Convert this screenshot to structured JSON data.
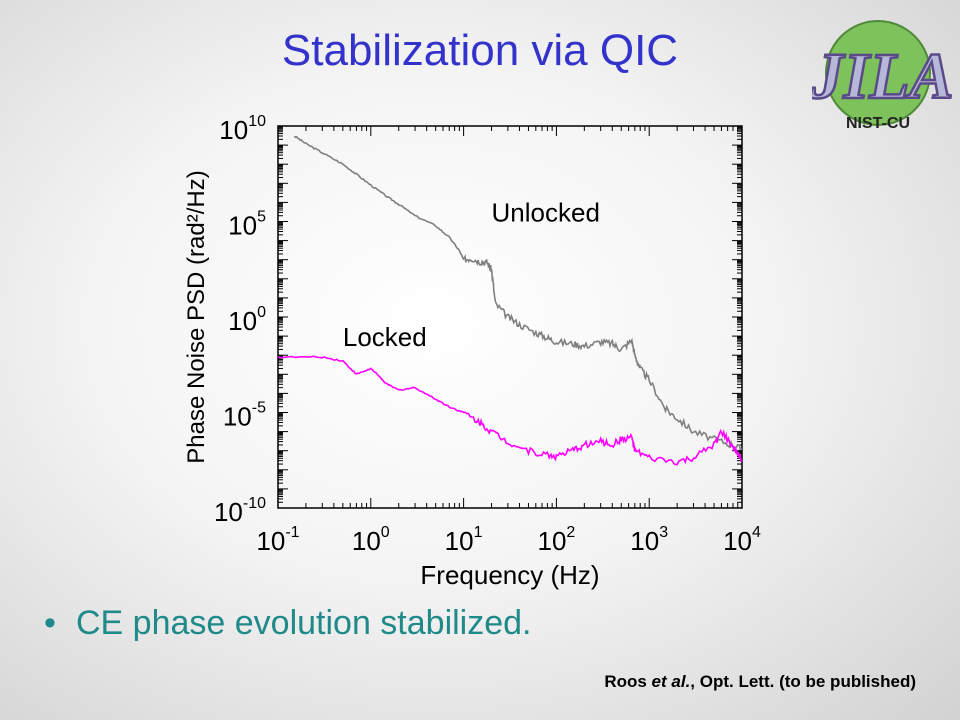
{
  "slide": {
    "title": "Stabilization via QIC",
    "logo": {
      "text_top": "JILA",
      "text_bottom": "NIST-CU",
      "colors": [
        "#8fd16a",
        "#b7b7d8",
        "#6a5a9e"
      ]
    },
    "bullet": "CE phase evolution stabilized.",
    "citation": {
      "authors": "Roos",
      "etal": "et al.",
      "rest": ", Opt. Lett. (to be published)"
    }
  },
  "chart_data": {
    "type": "line",
    "xscale": "log",
    "yscale": "log",
    "xlim": [
      0.1,
      10000
    ],
    "ylim": [
      1e-10,
      10000000000.0
    ],
    "xlabel": "Frequency (Hz)",
    "ylabel": "Phase Noise PSD (rad²/Hz)",
    "xticks": [
      {
        "value": 0.1,
        "base": "10",
        "exp": "-1"
      },
      {
        "value": 1,
        "base": "10",
        "exp": "0"
      },
      {
        "value": 10,
        "base": "10",
        "exp": "1"
      },
      {
        "value": 100,
        "base": "10",
        "exp": "2"
      },
      {
        "value": 1000,
        "base": "10",
        "exp": "3"
      },
      {
        "value": 10000,
        "base": "10",
        "exp": "4"
      }
    ],
    "yticks": [
      {
        "value": 10000000000.0,
        "base": "10",
        "exp": "10"
      },
      {
        "value": 100000.0,
        "base": "10",
        "exp": "5"
      },
      {
        "value": 1,
        "base": "10",
        "exp": "0"
      },
      {
        "value": 1e-05,
        "base": "10",
        "exp": "-5"
      },
      {
        "value": 1e-10,
        "base": "10",
        "exp": "-10"
      }
    ],
    "grid": false,
    "series": [
      {
        "name": "Unlocked",
        "color": "#808080",
        "points": [
          [
            0.15,
            3000000000.0
          ],
          [
            0.2,
            1200000000.0
          ],
          [
            0.3,
            400000000.0
          ],
          [
            0.5,
            100000000.0
          ],
          [
            0.7,
            30000000.0
          ],
          [
            1,
            8000000.0
          ],
          [
            1.5,
            2000000.0
          ],
          [
            2,
            800000.0
          ],
          [
            3,
            200000.0
          ],
          [
            5,
            60000.0
          ],
          [
            7,
            15000.0
          ],
          [
            9,
            3000.0
          ],
          [
            10,
            1000.0
          ],
          [
            12,
            1200.0
          ],
          [
            15,
            800.0
          ],
          [
            18,
            700.0
          ],
          [
            20,
            300.0
          ],
          [
            22,
            5
          ],
          [
            30,
            1
          ],
          [
            40,
            0.4
          ],
          [
            60,
            0.15
          ],
          [
            80,
            0.08
          ],
          [
            100,
            0.05
          ],
          [
            150,
            0.04
          ],
          [
            200,
            0.03
          ],
          [
            300,
            0.05
          ],
          [
            400,
            0.04
          ],
          [
            500,
            0.02
          ],
          [
            650,
            0.06
          ],
          [
            700,
            0.01
          ],
          [
            800,
            0.002
          ],
          [
            1000,
            0.0005
          ],
          [
            1500,
            1.5e-05
          ],
          [
            2000,
            5e-06
          ],
          [
            3000,
            1e-06
          ],
          [
            5000,
            4e-07
          ],
          [
            8000,
            2e-07
          ],
          [
            10000,
            1.2e-07
          ]
        ]
      },
      {
        "name": "Locked",
        "color": "#ff00ff",
        "points": [
          [
            0.1,
            0.008
          ],
          [
            0.3,
            0.008
          ],
          [
            0.5,
            0.005
          ],
          [
            0.7,
            0.001
          ],
          [
            1,
            0.002
          ],
          [
            1.5,
            0.0003
          ],
          [
            2,
            0.00015
          ],
          [
            3,
            0.0002
          ],
          [
            5,
            5e-05
          ],
          [
            7,
            2e-05
          ],
          [
            10,
            1e-05
          ],
          [
            15,
            3e-06
          ],
          [
            20,
            1e-06
          ],
          [
            30,
            3e-07
          ],
          [
            50,
            1e-07
          ],
          [
            80,
            6e-08
          ],
          [
            100,
            5e-08
          ],
          [
            150,
            1e-07
          ],
          [
            200,
            2e-07
          ],
          [
            300,
            3e-07
          ],
          [
            400,
            2e-07
          ],
          [
            500,
            4e-07
          ],
          [
            650,
            5e-07
          ],
          [
            700,
            1e-07
          ],
          [
            1000,
            4e-08
          ],
          [
            2000,
            2.5e-08
          ],
          [
            3000,
            4e-08
          ],
          [
            5000,
            2e-07
          ],
          [
            6000,
            1e-06
          ],
          [
            8000,
            1.5e-07
          ],
          [
            10000,
            3e-08
          ]
        ]
      }
    ],
    "annotations": [
      {
        "text": "Unlocked",
        "x": 20,
        "y": 100000.0
      },
      {
        "text": "Locked",
        "x": 0.5,
        "y": 0.03
      }
    ]
  }
}
